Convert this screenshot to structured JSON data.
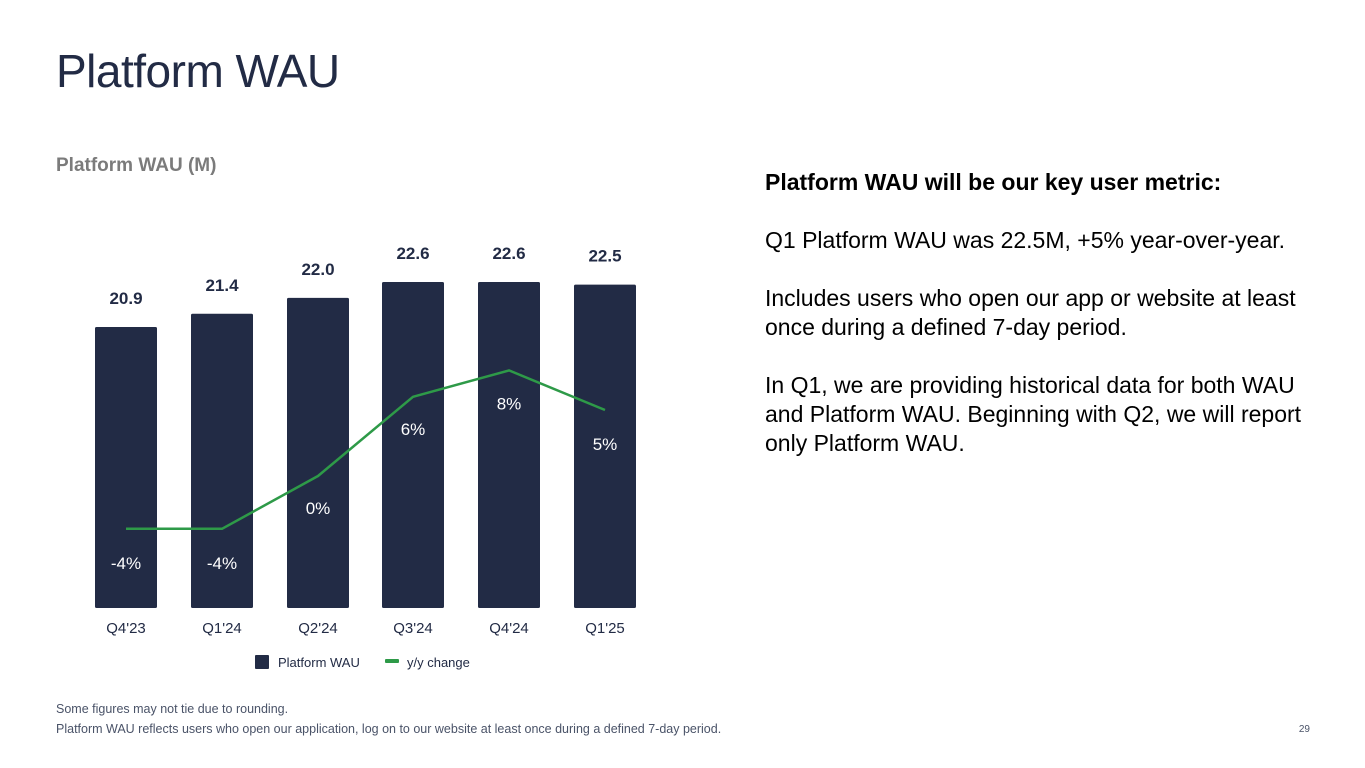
{
  "page": {
    "title": "Platform WAU",
    "page_number": "29"
  },
  "chart_data": {
    "type": "bar",
    "title": "Platform WAU (M)",
    "categories": [
      "Q4'23",
      "Q1'24",
      "Q2'24",
      "Q3'24",
      "Q4'24",
      "Q1'25"
    ],
    "series": [
      {
        "name": "Platform WAU",
        "type": "bar",
        "values": [
          20.9,
          21.4,
          22.0,
          22.6,
          22.6,
          22.5
        ],
        "labels": [
          "20.9",
          "21.4",
          "22.0",
          "22.6",
          "22.6",
          "22.5"
        ],
        "color": "#222b45"
      },
      {
        "name": "y/y change",
        "type": "line",
        "values": [
          -4,
          -4,
          0,
          6,
          8,
          5
        ],
        "labels": [
          "-4%",
          "-4%",
          "0%",
          "6%",
          "8%",
          "5%"
        ],
        "color": "#2e9a48"
      }
    ],
    "legend_position": "bottom",
    "grid": false
  },
  "panel": {
    "heading": "Platform WAU will be our key user metric:",
    "paragraphs": [
      "Q1 Platform WAU was 22.5M, +5% year-over-year.",
      "Includes users who open our app or website at least once during a defined 7-day period.",
      "In Q1, we are providing historical data for both WAU and Platform WAU. Beginning with Q2, we will report only Platform WAU."
    ]
  },
  "footnotes": [
    "Some figures may not tie due to rounding.",
    "Platform WAU reflects users who open our application, log on to our website at least once during a defined 7-day period."
  ],
  "colors": {
    "bar": "#222b45",
    "line": "#2e9a48",
    "title": "#222b45",
    "subtitle": "#7b7b7b"
  }
}
